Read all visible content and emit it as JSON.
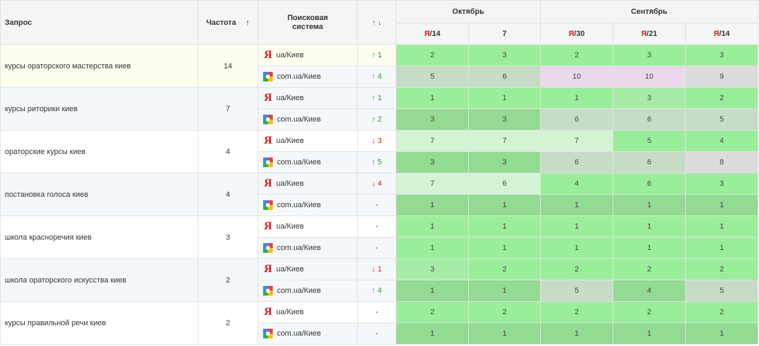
{
  "header": {
    "query": "Запрос",
    "frequency": "Частота",
    "sort_arrow": "↑",
    "engine_line1": "Поисковая",
    "engine_line2": "система",
    "change_up": "↑",
    "change_down": "↓",
    "month_october": "Октябрь",
    "month_september": "Сентябрь",
    "cols": [
      {
        "ya": "Я",
        "label": "/14"
      },
      {
        "ya": "",
        "label": "7"
      },
      {
        "ya": "Я",
        "label": "/30"
      },
      {
        "ya": "Я",
        "label": "/21"
      },
      {
        "ya": "Я",
        "label": "/14"
      }
    ]
  },
  "colors": {
    "best": "#9aee9a",
    "good": "#a6eca6",
    "mid": "#93da93",
    "pale": "#d3f3d3",
    "neutral": "#c6dcc6",
    "grey": "#dcdcdc",
    "pink": "#ecd8ec"
  },
  "rows": [
    {
      "query": "курсы ораторского мастерства киев",
      "frequency": "14",
      "bg": "bg-yellow",
      "engines": [
        {
          "type": "yandex",
          "label": "ua/Киев",
          "dir": "up",
          "arrow": "↑",
          "change": "1",
          "positions": [
            "2",
            "3",
            "2",
            "3",
            "3"
          ],
          "shade": [
            "best",
            "best",
            "best",
            "best",
            "best"
          ]
        },
        {
          "type": "google",
          "label": "com.ua/Киев",
          "dir": "up",
          "arrow": "↑",
          "change": "4",
          "positions": [
            "5",
            "6",
            "10",
            "10",
            "9"
          ],
          "shade": [
            "neutral",
            "neutral",
            "pink",
            "pink",
            "grey"
          ]
        }
      ]
    },
    {
      "query": "курсы риторики киев",
      "frequency": "7",
      "bg": "bg-light",
      "engines": [
        {
          "type": "yandex",
          "label": "ua/Киев",
          "dir": "up",
          "arrow": "↑",
          "change": "1",
          "positions": [
            "1",
            "1",
            "1",
            "3",
            "2"
          ],
          "shade": [
            "best",
            "best",
            "best",
            "good",
            "best"
          ]
        },
        {
          "type": "google",
          "label": "com.ua/Киев",
          "dir": "up",
          "arrow": "↑",
          "change": "2",
          "positions": [
            "3",
            "3",
            "6",
            "6",
            "5"
          ],
          "shade": [
            "mid",
            "mid",
            "neutral",
            "neutral",
            "neutral"
          ]
        }
      ]
    },
    {
      "query": "ораторские курсы киев",
      "frequency": "4",
      "bg": "bg-white",
      "engines": [
        {
          "type": "yandex",
          "label": "ua/Киев",
          "dir": "down",
          "arrow": "↓",
          "change": "3",
          "positions": [
            "7",
            "7",
            "7",
            "5",
            "4"
          ],
          "shade": [
            "pale",
            "pale",
            "pale",
            "best",
            "best"
          ]
        },
        {
          "type": "google",
          "label": "com.ua/Киев",
          "dir": "up",
          "arrow": "↑",
          "change": "5",
          "positions": [
            "3",
            "3",
            "6",
            "6",
            "8"
          ],
          "shade": [
            "mid",
            "mid",
            "neutral",
            "neutral",
            "grey"
          ]
        }
      ]
    },
    {
      "query": "постановка голоса киев",
      "frequency": "4",
      "bg": "bg-light",
      "engines": [
        {
          "type": "yandex",
          "label": "ua/Киев",
          "dir": "down",
          "arrow": "↓",
          "change": "4",
          "positions": [
            "7",
            "6",
            "4",
            "6",
            "3"
          ],
          "shade": [
            "pale",
            "pale",
            "best",
            "best",
            "best"
          ]
        },
        {
          "type": "google",
          "label": "com.ua/Киев",
          "dir": "none",
          "arrow": "",
          "change": "-",
          "positions": [
            "1",
            "1",
            "1",
            "1",
            "1"
          ],
          "shade": [
            "mid",
            "mid",
            "mid",
            "mid",
            "mid"
          ]
        }
      ]
    },
    {
      "query": "школа красноречия киев",
      "frequency": "3",
      "bg": "bg-white",
      "engines": [
        {
          "type": "yandex",
          "label": "ua/Киев",
          "dir": "none",
          "arrow": "",
          "change": "-",
          "positions": [
            "1",
            "1",
            "1",
            "1",
            "1"
          ],
          "shade": [
            "best",
            "best",
            "best",
            "best",
            "best"
          ]
        },
        {
          "type": "google",
          "label": "com.ua/Киев",
          "dir": "none",
          "arrow": "",
          "change": "-",
          "positions": [
            "1",
            "1",
            "1",
            "1",
            "1"
          ],
          "shade": [
            "best",
            "best",
            "best",
            "best",
            "best"
          ]
        }
      ]
    },
    {
      "query": "школа ораторского искусства киев",
      "frequency": "2",
      "bg": "bg-light",
      "engines": [
        {
          "type": "yandex",
          "label": "ua/Киев",
          "dir": "down",
          "arrow": "↓",
          "change": "1",
          "positions": [
            "3",
            "2",
            "2",
            "2",
            "2"
          ],
          "shade": [
            "good",
            "best",
            "best",
            "best",
            "best"
          ]
        },
        {
          "type": "google",
          "label": "com.ua/Киев",
          "dir": "up",
          "arrow": "↑",
          "change": "4",
          "positions": [
            "1",
            "1",
            "5",
            "4",
            "5"
          ],
          "shade": [
            "mid",
            "mid",
            "neutral",
            "mid",
            "neutral"
          ]
        }
      ]
    },
    {
      "query": "курсы правильной речи киев",
      "frequency": "2",
      "bg": "bg-white",
      "engines": [
        {
          "type": "yandex",
          "label": "ua/Киев",
          "dir": "none",
          "arrow": "",
          "change": "-",
          "positions": [
            "2",
            "2",
            "2",
            "2",
            "2"
          ],
          "shade": [
            "best",
            "best",
            "best",
            "best",
            "best"
          ]
        },
        {
          "type": "google",
          "label": "com.ua/Киев",
          "dir": "none",
          "arrow": "",
          "change": "-",
          "positions": [
            "1",
            "1",
            "1",
            "1",
            "1"
          ],
          "shade": [
            "mid",
            "mid",
            "mid",
            "mid",
            "mid"
          ]
        }
      ]
    }
  ]
}
